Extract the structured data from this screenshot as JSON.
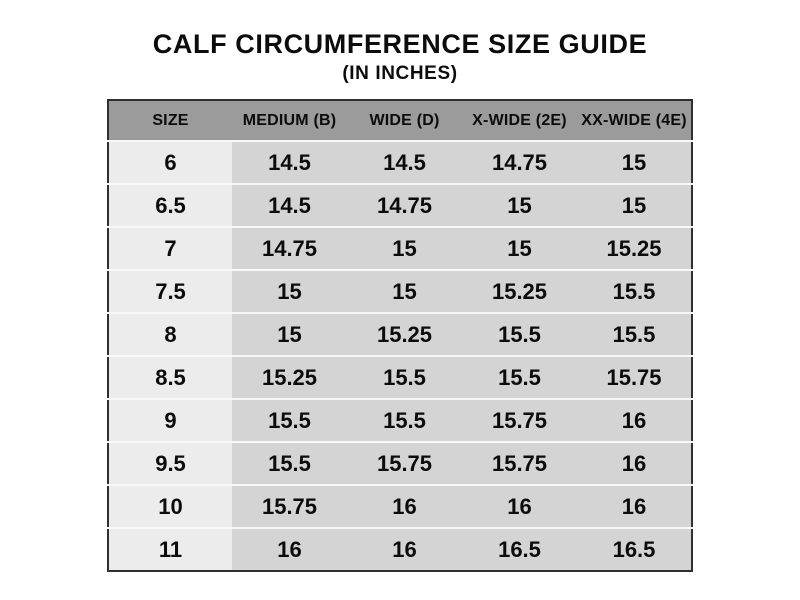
{
  "page": {
    "title": "CALF CIRCUMFERENCE SIZE GUIDE",
    "subtitle": "(IN INCHES)"
  },
  "colors": {
    "page_bg": "#ffffff",
    "text": "#0c0c0c",
    "header_bg": "#9b9b9b",
    "size_col_bg": "#ececec",
    "cell_bg": "#d4d4d4",
    "row_divider": "#f8f8f8",
    "table_border": "#2f2f2f"
  },
  "chart_data": {
    "type": "table",
    "title": "CALF CIRCUMFERENCE SIZE GUIDE",
    "subtitle": "(IN INCHES)",
    "units": "inches",
    "columns": [
      "SIZE",
      "MEDIUM (B)",
      "WIDE (D)",
      "X-WIDE (2E)",
      "XX-WIDE (4E)"
    ],
    "rows": [
      [
        "6",
        "14.5",
        "14.5",
        "14.75",
        "15"
      ],
      [
        "6.5",
        "14.5",
        "14.75",
        "15",
        "15"
      ],
      [
        "7",
        "14.75",
        "15",
        "15",
        "15.25"
      ],
      [
        "7.5",
        "15",
        "15",
        "15.25",
        "15.5"
      ],
      [
        "8",
        "15",
        "15.25",
        "15.5",
        "15.5"
      ],
      [
        "8.5",
        "15.25",
        "15.5",
        "15.5",
        "15.75"
      ],
      [
        "9",
        "15.5",
        "15.5",
        "15.75",
        "16"
      ],
      [
        "9.5",
        "15.5",
        "15.75",
        "15.75",
        "16"
      ],
      [
        "10",
        "15.75",
        "16",
        "16",
        "16"
      ],
      [
        "11",
        "16",
        "16",
        "16.5",
        "16.5"
      ]
    ]
  }
}
